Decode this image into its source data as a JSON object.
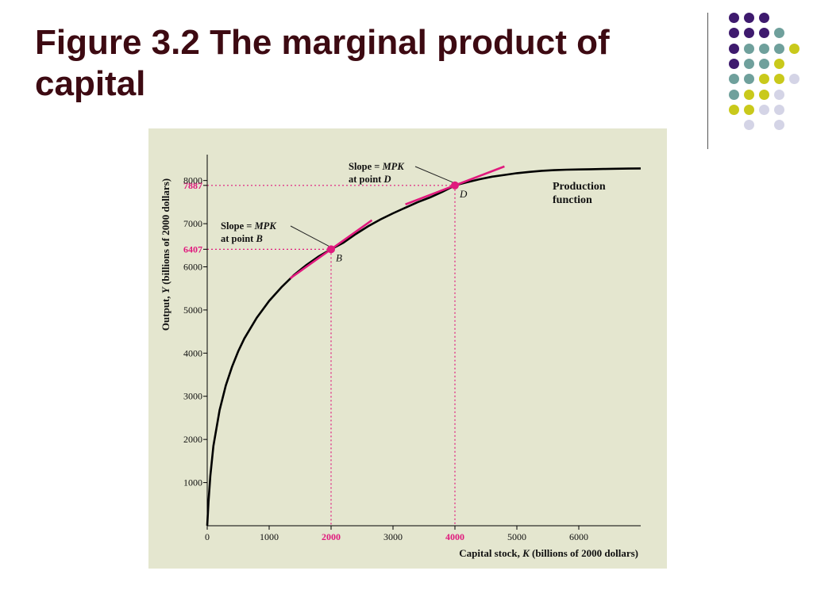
{
  "slide": {
    "title_number": "Figure 3.2",
    "title_rest": " The marginal product of capital"
  },
  "decor": {
    "colors": {
      "purple": "#3e1a6e",
      "teal": "#6fa09c",
      "yellow": "#c9c91b",
      "lavender": "#d4d4e6"
    },
    "dot_rows": [
      [
        "",
        "purple",
        "purple",
        "purple",
        ""
      ],
      [
        "",
        "purple",
        "purple",
        "purple",
        "teal"
      ],
      [
        "",
        "purple",
        "teal",
        "teal",
        "teal",
        "yellow"
      ],
      [
        "",
        "purple",
        "teal",
        "teal",
        "yellow"
      ],
      [
        "",
        "teal",
        "teal",
        "yellow",
        "yellow",
        "lavender"
      ],
      [
        "",
        "teal",
        "yellow",
        "yellow",
        "lavender"
      ],
      [
        "",
        "yellow",
        "yellow",
        "lavender",
        "lavender"
      ],
      [
        "",
        "",
        "lavender",
        "",
        "lavender"
      ]
    ]
  },
  "chart_data": {
    "type": "line",
    "xlabel_prefix": "Capital stock, ",
    "xlabel_var": "K",
    "xlabel_suffix": " (billions of 2000 dollars)",
    "ylabel_prefix": "Output, ",
    "ylabel_var": "Y",
    "ylabel_suffix": " (billions of 2000 dollars)",
    "xlim": [
      0,
      7000
    ],
    "ylim": [
      0,
      8600
    ],
    "x_ticks": [
      {
        "value": 0,
        "label": "0"
      },
      {
        "value": 1000,
        "label": "1000"
      },
      {
        "value": 2000,
        "label": "2000",
        "highlight": true
      },
      {
        "value": 3000,
        "label": "3000"
      },
      {
        "value": 4000,
        "label": "4000",
        "highlight": true
      },
      {
        "value": 5000,
        "label": "5000"
      },
      {
        "value": 6000,
        "label": "6000"
      }
    ],
    "y_ticks": [
      {
        "value": 1000,
        "label": "1000"
      },
      {
        "value": 2000,
        "label": "2000"
      },
      {
        "value": 3000,
        "label": "3000"
      },
      {
        "value": 4000,
        "label": "4000"
      },
      {
        "value": 5000,
        "label": "5000"
      },
      {
        "value": 6000,
        "label": "6000"
      },
      {
        "value": 6407,
        "label": "6407",
        "highlight": true
      },
      {
        "value": 7000,
        "label": "7000"
      },
      {
        "value": 7887,
        "label": "7887",
        "highlight": true
      },
      {
        "value": 8000,
        "label": "8000"
      }
    ],
    "series": [
      {
        "name": "Production function",
        "name_line1": "Production",
        "name_line2": "function",
        "x": [
          0,
          20,
          50,
          100,
          200,
          300,
          400,
          500,
          600,
          800,
          1000,
          1200,
          1400,
          1600,
          1800,
          2000,
          2200,
          2400,
          2600,
          2800,
          3000,
          3200,
          3400,
          3600,
          3800,
          4000,
          4200,
          4400,
          4600,
          4800,
          5000,
          5200,
          5400,
          5600,
          5800,
          6000,
          6200,
          6400,
          6600,
          6800,
          7000
        ],
        "y": [
          0,
          550,
          1150,
          1850,
          2680,
          3250,
          3680,
          4040,
          4340,
          4820,
          5210,
          5530,
          5810,
          6040,
          6240,
          6407,
          6560,
          6760,
          6940,
          7100,
          7240,
          7370,
          7500,
          7610,
          7740,
          7887,
          7960,
          8030,
          8090,
          8130,
          8170,
          8200,
          8225,
          8240,
          8250,
          8256,
          8262,
          8268,
          8272,
          8276,
          8280
        ]
      }
    ],
    "points": [
      {
        "label": "B",
        "x": 2000,
        "y": 6407,
        "slope": 1.02,
        "tangent_half_width": 660
      },
      {
        "label": "D",
        "x": 4000,
        "y": 7887,
        "slope": 0.55,
        "tangent_half_width": 800
      }
    ],
    "annotations": [
      {
        "target": "B",
        "line1_prefix": "Slope = ",
        "line1_var": "MPK",
        "line2_prefix": "at point ",
        "line2_var": "B"
      },
      {
        "target": "D",
        "line1_prefix": "Slope = ",
        "line1_var": "MPK",
        "line2_prefix": "at point ",
        "line2_var": "D"
      }
    ],
    "colors": {
      "curve": "#000000",
      "highlight": "#e0197d",
      "panel": "#e4e6cf"
    }
  }
}
